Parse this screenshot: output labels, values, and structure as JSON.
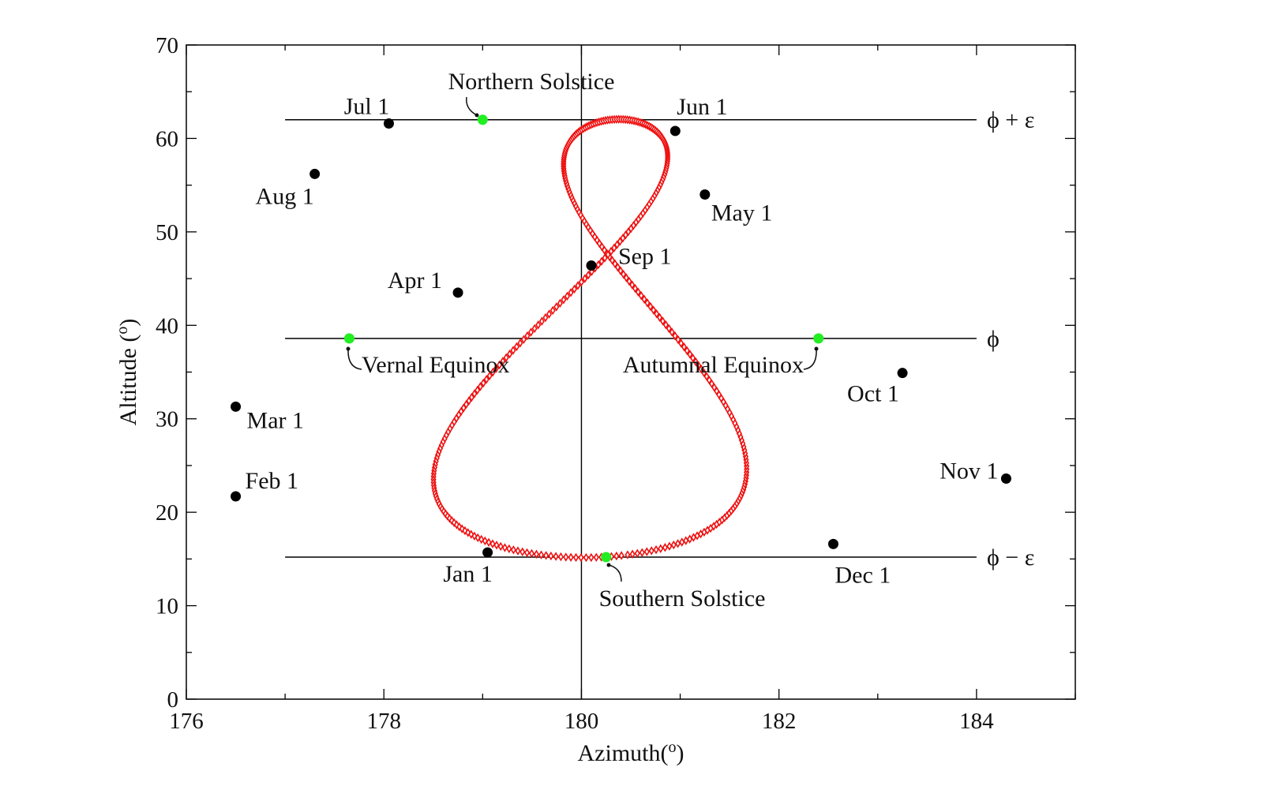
{
  "chart_data": {
    "type": "scatter",
    "xlabel": "Azimuth(o)",
    "ylabel": "Altitude (o)",
    "xlim": [
      176,
      185
    ],
    "ylim": [
      0,
      70
    ],
    "x_ticks": [
      176,
      178,
      180,
      182,
      184
    ],
    "y_ticks": [
      0,
      10,
      20,
      30,
      40,
      50,
      60,
      70
    ],
    "grid": false,
    "analemma_params": {
      "center_azimuth": 180.2,
      "latitude_phi": 38.6,
      "obliquity_epsilon": 23.45,
      "points_per_year": 365
    },
    "reference_lines": [
      {
        "label": "ϕ + ε",
        "y": 62.0,
        "x_range": [
          177.0,
          184.0
        ]
      },
      {
        "label": "ϕ",
        "y": 38.6,
        "x_range": [
          177.0,
          184.0
        ]
      },
      {
        "label": "ϕ − ε",
        "y": 15.2,
        "x_range": [
          177.0,
          184.0
        ]
      }
    ],
    "vertical_line": {
      "x": 180
    },
    "key_points": [
      {
        "label": "Northern Solstice",
        "x": 179.0,
        "y": 62.0
      },
      {
        "label": "Vernal Equinox",
        "x": 177.65,
        "y": 38.6
      },
      {
        "label": "Autumnal Equinox",
        "x": 182.4,
        "y": 38.6
      },
      {
        "label": "Southern Solstice",
        "x": 180.25,
        "y": 15.2
      }
    ],
    "month_points": [
      {
        "label": "Jan 1",
        "x": 179.05,
        "y": 15.7
      },
      {
        "label": "Feb 1",
        "x": 176.5,
        "y": 21.7
      },
      {
        "label": "Mar 1",
        "x": 176.5,
        "y": 31.3
      },
      {
        "label": "Apr 1",
        "x": 178.75,
        "y": 43.5
      },
      {
        "label": "May 1",
        "x": 181.25,
        "y": 54.0
      },
      {
        "label": "Jun 1",
        "x": 180.95,
        "y": 60.8
      },
      {
        "label": "Jul 1",
        "x": 178.05,
        "y": 61.6
      },
      {
        "label": "Aug 1",
        "x": 177.3,
        "y": 56.2
      },
      {
        "label": "Sep 1",
        "x": 180.1,
        "y": 46.4
      },
      {
        "label": "Oct 1",
        "x": 183.25,
        "y": 34.9
      },
      {
        "label": "Nov 1",
        "x": 184.3,
        "y": 23.6
      },
      {
        "label": "Dec 1",
        "x": 182.55,
        "y": 16.6
      }
    ],
    "colors": {
      "analemma": "#ee1111",
      "month_point": "#000000",
      "key_point": "#22ee22",
      "axis": "#000000"
    }
  }
}
